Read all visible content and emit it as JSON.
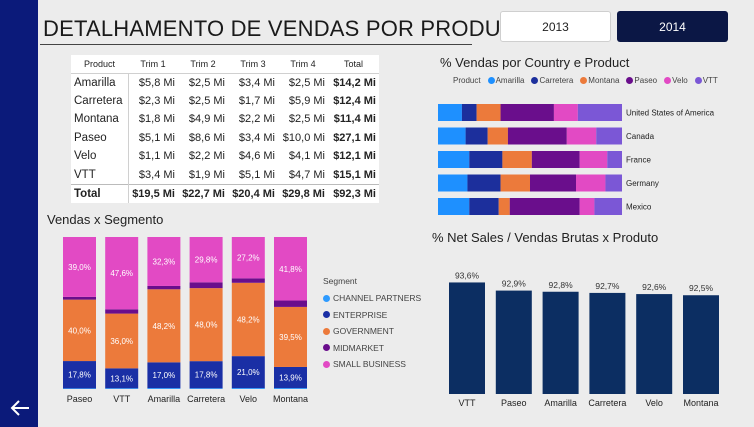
{
  "header": {
    "title": "DETALHAMENTO DE VENDAS POR PRODUTO",
    "years": [
      {
        "label": "2013",
        "selected": false
      },
      {
        "label": "2014",
        "selected": true
      }
    ]
  },
  "nav": {
    "back_icon": "arrow-left-icon"
  },
  "colors": {
    "left_bar": "#0b1a7a",
    "year_selected": "#0b1745",
    "amarilla": "#1e90ff",
    "carretera": "#1c2f9c",
    "montana": "#ec7a3b",
    "paseo": "#6a0e8c",
    "velo": "#e24ac4",
    "vtt": "#7b57d6",
    "channel_partners": "#2e9bff",
    "enterprise": "#1a2fa5",
    "government": "#ec7a3b",
    "midmarket": "#6a0e8c",
    "small_business": "#e24ac4",
    "net_sales_bar": "#0c2e62"
  },
  "product_table": {
    "headers": [
      "Product",
      "Trim 1",
      "Trim 2",
      "Trim 3",
      "Trim 4",
      "Total"
    ],
    "rows": [
      {
        "product": "Amarilla",
        "q1": "$5,8 Mi",
        "q2": "$2,5 Mi",
        "q3": "$3,4 Mi",
        "q4": "$2,5 Mi",
        "total": "$14,2 Mi"
      },
      {
        "product": "Carretera",
        "q1": "$2,3 Mi",
        "q2": "$2,5 Mi",
        "q3": "$1,7 Mi",
        "q4": "$5,9 Mi",
        "total": "$12,4 Mi"
      },
      {
        "product": "Montana",
        "q1": "$1,8 Mi",
        "q2": "$4,9 Mi",
        "q3": "$2,2 Mi",
        "q4": "$2,5 Mi",
        "total": "$11,4 Mi"
      },
      {
        "product": "Paseo",
        "q1": "$5,1 Mi",
        "q2": "$8,6 Mi",
        "q3": "$3,4 Mi",
        "q4": "$10,0 Mi",
        "total": "$27,1 Mi"
      },
      {
        "product": "Velo",
        "q1": "$1,1 Mi",
        "q2": "$2,2 Mi",
        "q3": "$4,6 Mi",
        "q4": "$4,1 Mi",
        "total": "$12,1 Mi"
      },
      {
        "product": "VTT",
        "q1": "$3,4 Mi",
        "q2": "$1,9 Mi",
        "q3": "$5,1 Mi",
        "q4": "$4,7 Mi",
        "total": "$15,1 Mi"
      }
    ],
    "total_row": {
      "product": "Total",
      "q1": "$19,5 Mi",
      "q2": "$22,7 Mi",
      "q3": "$20,4 Mi",
      "q4": "$29,8 Mi",
      "total": "$92,3 Mi"
    }
  },
  "chart_data": [
    {
      "type": "bar",
      "stacked": "100%",
      "orientation": "horizontal",
      "title": "% Vendas por Country e Product",
      "legend_title": "Product",
      "legend_position": "top",
      "categories": [
        "United States of America",
        "Canada",
        "France",
        "Germany",
        "Mexico"
      ],
      "series": [
        {
          "name": "Amarilla",
          "values": [
            0.13,
            0.15,
            0.17,
            0.16,
            0.17
          ]
        },
        {
          "name": "Carretera",
          "values": [
            0.08,
            0.12,
            0.18,
            0.18,
            0.16
          ]
        },
        {
          "name": "Montana",
          "values": [
            0.13,
            0.11,
            0.16,
            0.16,
            0.06
          ]
        },
        {
          "name": "Paseo",
          "values": [
            0.29,
            0.32,
            0.26,
            0.25,
            0.38
          ]
        },
        {
          "name": "Velo",
          "values": [
            0.13,
            0.16,
            0.15,
            0.16,
            0.08
          ]
        },
        {
          "name": "VTT",
          "values": [
            0.24,
            0.14,
            0.08,
            0.09,
            0.15
          ]
        }
      ]
    },
    {
      "type": "bar",
      "stacked": "100%",
      "orientation": "vertical",
      "title": "Vendas x Segmento",
      "legend_title": "Segment",
      "legend_position": "right",
      "categories": [
        "Paseo",
        "VTT",
        "Amarilla",
        "Carretera",
        "Velo",
        "Montana"
      ],
      "series": [
        {
          "name": "CHANNEL PARTNERS",
          "values": [
            0.4,
            0.5,
            0.6,
            0.5,
            0.6,
            0.6
          ],
          "labels": [
            "",
            "",
            "",
            "",
            "",
            ""
          ]
        },
        {
          "name": "ENTERPRISE",
          "values": [
            17.8,
            13.1,
            17.0,
            17.8,
            21.0,
            13.9
          ],
          "labels": [
            "17,8%",
            "13,1%",
            "17,0%",
            "17,8%",
            "21,0%",
            "13,9%"
          ]
        },
        {
          "name": "GOVERNMENT",
          "values": [
            40.0,
            36.0,
            48.2,
            48.0,
            48.2,
            39.5
          ],
          "labels": [
            "40,0%",
            "36,0%",
            "48,2%",
            "48,0%",
            "48,2%",
            "39,5%"
          ]
        },
        {
          "name": "MIDMARKET",
          "values": [
            1.8,
            2.8,
            2.2,
            3.8,
            2.9,
            4.2
          ],
          "labels": [
            "",
            "",
            "",
            "",
            "",
            ""
          ]
        },
        {
          "name": "SMALL BUSINESS",
          "values": [
            39.0,
            47.6,
            32.3,
            29.8,
            27.2,
            41.8
          ],
          "labels": [
            "39,0%",
            "47,6%",
            "32,3%",
            "29,8%",
            "27,2%",
            "41,8%"
          ]
        }
      ]
    },
    {
      "type": "bar",
      "title": "% Net Sales / Vendas Brutas x Produto",
      "categories": [
        "VTT",
        "Paseo",
        "Amarilla",
        "Carretera",
        "Velo",
        "Montana"
      ],
      "values": [
        93.6,
        92.9,
        92.8,
        92.7,
        92.6,
        92.5
      ],
      "labels": [
        "93,6%",
        "92,9%",
        "92,8%",
        "92,7%",
        "92,6%",
        "92,5%"
      ],
      "ylim": [
        84,
        94.5
      ],
      "grid": false
    }
  ]
}
